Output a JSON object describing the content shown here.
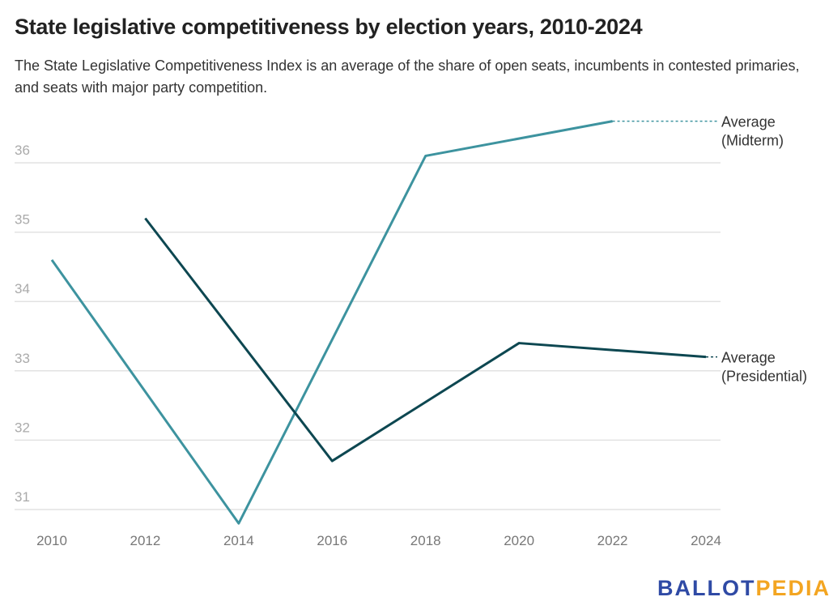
{
  "chart_data": {
    "type": "line",
    "title": "State legislative competitiveness by election years, 2010-2024",
    "subtitle": "The State Legislative Competitiveness Index is an average of the share of open seats, incumbents in contested primaries, and seats with major party competition.",
    "xlabel": "",
    "ylabel": "",
    "x_ticks": [
      "2010",
      "2012",
      "2014",
      "2016",
      "2018",
      "2020",
      "2022",
      "2024"
    ],
    "y_ticks": [
      "31",
      "32",
      "33",
      "34",
      "35",
      "36"
    ],
    "xlim": [
      2010,
      2024
    ],
    "ylim": [
      30.8,
      36.6
    ],
    "grid": true,
    "series": [
      {
        "name": "Average (Midterm)",
        "label_lines": [
          "Average",
          "(Midterm)"
        ],
        "color": "#3d939f",
        "x": [
          2010,
          2014,
          2018,
          2022
        ],
        "y": [
          34.6,
          30.8,
          36.1,
          36.6
        ]
      },
      {
        "name": "Average (Presidential)",
        "label_lines": [
          "Average",
          "(Presidential)"
        ],
        "color": "#0d4751",
        "x": [
          2012,
          2016,
          2020,
          2024
        ],
        "y": [
          35.2,
          31.7,
          33.4,
          33.2
        ]
      }
    ]
  },
  "logo": {
    "part1": "BALLOT",
    "part2": "PEDIA"
  }
}
